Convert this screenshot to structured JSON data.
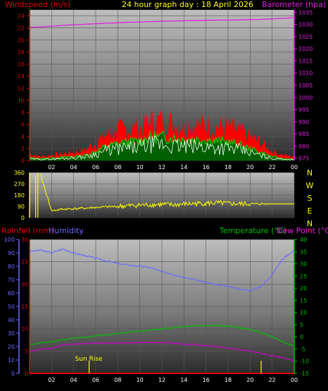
{
  "header": {
    "title": "24 hour graph day : 18 April 2026",
    "left_label": "Windspeed (m/s)",
    "right_label": "Barometer (hpa)",
    "lower_left_rain": "Rainfall (mm)",
    "lower_left_hum": "Humidity",
    "lower_right_temp": "Temperature (°C)",
    "lower_right_dew": "Dew Point (°C)",
    "sunrise_label": "Sun Rise"
  },
  "colors": {
    "windspeed_axis": "#e00000",
    "barometer": "#e020e0",
    "title": "#ffff00",
    "wind_dir": "#ffff00",
    "humidity": "#6a6aff",
    "temperature": "#00c000",
    "dew_point": "#d000d0",
    "rain": "#e00000",
    "gust": "#ff0000",
    "avg": "#00cc00",
    "speed": "#ffffff"
  },
  "chart_data": [
    {
      "type": "area",
      "name": "wind-barometer",
      "x_ticks": [
        "02",
        "04",
        "06",
        "08",
        "10",
        "12",
        "14",
        "16",
        "18",
        "20",
        "22",
        "00"
      ],
      "y_left_ticks": [
        "0",
        "2",
        "4",
        "6",
        "8",
        "10",
        "12",
        "14",
        "16",
        "18",
        "20",
        "22",
        "24"
      ],
      "y_left_range": [
        0,
        25
      ],
      "y_right_ticks": [
        "975",
        "980",
        "985",
        "990",
        "995",
        "1000",
        "1005",
        "1010",
        "1015",
        "1020",
        "1025",
        "1030",
        "1035"
      ],
      "y_right_range": [
        974,
        1036
      ],
      "hours": [
        0,
        1,
        2,
        3,
        4,
        5,
        6,
        7,
        8,
        9,
        10,
        11,
        12,
        13,
        14,
        15,
        16,
        17,
        18,
        19,
        20,
        21,
        22,
        23,
        24
      ],
      "barometer": [
        1028.8,
        1029.0,
        1029.3,
        1029.6,
        1029.9,
        1030.1,
        1030.3,
        1030.5,
        1030.7,
        1030.9,
        1031.0,
        1031.2,
        1031.3,
        1031.4,
        1031.5,
        1031.6,
        1031.7,
        1031.8,
        1031.8,
        1031.9,
        1032.0,
        1032.1,
        1032.3,
        1032.5,
        1032.8
      ],
      "gust": [
        1.0,
        0.6,
        0.8,
        1.0,
        1.2,
        1.6,
        2.6,
        3.8,
        4.4,
        4.6,
        4.8,
        5.6,
        5.8,
        5.4,
        5.0,
        5.2,
        5.2,
        5.0,
        4.8,
        4.2,
        3.4,
        2.6,
        1.4,
        0.8,
        0.6
      ],
      "avg": [
        0.4,
        0.3,
        0.4,
        0.5,
        0.6,
        0.8,
        1.4,
        2.2,
        2.6,
        2.8,
        3.0,
        3.6,
        3.6,
        3.4,
        3.2,
        3.2,
        3.2,
        3.0,
        2.8,
        2.4,
        1.8,
        1.2,
        0.6,
        0.3,
        0.2
      ],
      "speed": [
        0.2,
        0.2,
        0.2,
        0.3,
        0.4,
        0.5,
        0.9,
        1.4,
        1.6,
        1.7,
        1.8,
        2.2,
        2.2,
        2.0,
        1.9,
        1.9,
        1.9,
        1.8,
        1.7,
        1.5,
        1.1,
        0.7,
        0.3,
        0.2,
        0.1
      ]
    },
    {
      "type": "line",
      "name": "wind-direction",
      "y_ticks": [
        "360",
        "270",
        "180",
        "90",
        "0"
      ],
      "y_range": [
        0,
        360
      ],
      "dir_labels": [
        "N",
        "W",
        "S",
        "E",
        "N"
      ],
      "hours": [
        0,
        1,
        2,
        3,
        4,
        5,
        6,
        7,
        8,
        9,
        10,
        11,
        12,
        13,
        14,
        15,
        16,
        17,
        18,
        19,
        20,
        21,
        22,
        23,
        24
      ],
      "direction": [
        null,
        340,
        55,
        68,
        72,
        76,
        82,
        86,
        90,
        95,
        100,
        103,
        106,
        102,
        108,
        112,
        115,
        118,
        112,
        110,
        110,
        110,
        null,
        null,
        null
      ]
    },
    {
      "type": "line",
      "name": "temperature-humidity",
      "x_ticks": [
        "02",
        "04",
        "06",
        "08",
        "10",
        "12",
        "14",
        "16",
        "18",
        "20",
        "22",
        "00"
      ],
      "rain_ticks": [
        "0",
        "5",
        "10",
        "15",
        "20",
        "25",
        "30"
      ],
      "rain_range": [
        0,
        30
      ],
      "humidity_ticks": [
        "0",
        "10",
        "20",
        "30",
        "40",
        "50",
        "60",
        "70",
        "80",
        "90",
        "100"
      ],
      "humidity_range": [
        0,
        100
      ],
      "temp_ticks": [
        "-15",
        "-10",
        "-5",
        "0",
        "5",
        "10",
        "15",
        "20",
        "25",
        "30",
        "35",
        "40"
      ],
      "temp_range": [
        -15,
        40
      ],
      "hours": [
        0,
        1,
        2,
        3,
        4,
        5,
        6,
        7,
        8,
        9,
        10,
        11,
        12,
        13,
        14,
        15,
        16,
        17,
        18,
        19,
        20,
        21,
        22,
        23,
        24
      ],
      "humidity": [
        91,
        92,
        90,
        93,
        90,
        88,
        86,
        84,
        82,
        81,
        80,
        79,
        76,
        74,
        72,
        70,
        68,
        66,
        65,
        63,
        62,
        65,
        74,
        86,
        92
      ],
      "temperature": [
        -3.2,
        -2.5,
        -2.0,
        -1.2,
        -0.6,
        -0.2,
        0.4,
        0.9,
        1.4,
        1.9,
        2.4,
        2.8,
        3.3,
        3.8,
        4.2,
        4.5,
        4.7,
        4.7,
        4.5,
        3.8,
        3.0,
        1.8,
        0.0,
        -2.0,
        -3.8
      ],
      "dew_point": [
        -6.2,
        -5.0,
        -4.8,
        -3.2,
        -3.0,
        -2.8,
        -2.6,
        -2.5,
        -2.5,
        -2.4,
        -2.4,
        -2.3,
        -2.3,
        -2.5,
        -3.0,
        -3.2,
        -3.6,
        -4.0,
        -4.6,
        -5.2,
        -5.8,
        -6.8,
        -7.8,
        -8.6,
        -9.8
      ],
      "rain": [
        0,
        0,
        0,
        0,
        0,
        0,
        0,
        0,
        0,
        0,
        0,
        0,
        0,
        0,
        0,
        0,
        0,
        0,
        0,
        0,
        0,
        0,
        0,
        0,
        0
      ],
      "sunrise_hour": 5.4,
      "sunset_hour": 21.0
    }
  ]
}
